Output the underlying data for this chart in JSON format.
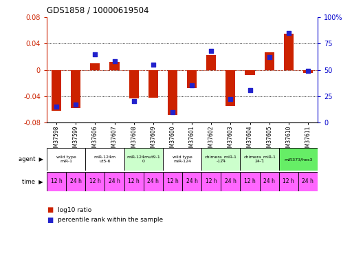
{
  "title": "GDS1858 / 10000619504",
  "samples": [
    "GSM37598",
    "GSM37599",
    "GSM37606",
    "GSM37607",
    "GSM37608",
    "GSM37609",
    "GSM37600",
    "GSM37601",
    "GSM37602",
    "GSM37603",
    "GSM37604",
    "GSM37605",
    "GSM37610",
    "GSM37611"
  ],
  "log10_ratio": [
    -0.062,
    -0.058,
    0.01,
    0.012,
    -0.043,
    -0.042,
    -0.068,
    -0.028,
    0.022,
    -0.055,
    -0.008,
    0.027,
    0.055,
    -0.005
  ],
  "percentile": [
    15,
    17,
    65,
    58,
    20,
    55,
    10,
    35,
    68,
    22,
    31,
    62,
    85,
    49
  ],
  "ylim": [
    -0.08,
    0.08
  ],
  "yticks_left": [
    -0.08,
    -0.04,
    0.0,
    0.04,
    0.08
  ],
  "yticks_right": [
    0,
    25,
    50,
    75,
    100
  ],
  "agent_groups": [
    {
      "label": "wild type\nmiR-1",
      "samples": [
        0,
        1
      ],
      "color": "#ffffff"
    },
    {
      "label": "miR-124m\nut5-6",
      "samples": [
        2,
        3
      ],
      "color": "#ffffff"
    },
    {
      "label": "miR-124mut9-1\n0",
      "samples": [
        4,
        5
      ],
      "color": "#ccffcc"
    },
    {
      "label": "wild type\nmiR-124",
      "samples": [
        6,
        7
      ],
      "color": "#ffffff"
    },
    {
      "label": "chimera_miR-1\n-124",
      "samples": [
        8,
        9
      ],
      "color": "#ccffcc"
    },
    {
      "label": "chimera_miR-1\n24-1",
      "samples": [
        10,
        11
      ],
      "color": "#ccffcc"
    },
    {
      "label": "miR373/hes3",
      "samples": [
        12,
        13
      ],
      "color": "#66ee66"
    }
  ],
  "time_labels": [
    "12 h",
    "24 h",
    "12 h",
    "24 h",
    "12 h",
    "24 h",
    "12 h",
    "24 h",
    "12 h",
    "24 h",
    "12 h",
    "24 h",
    "12 h",
    "24 h"
  ],
  "time_color": "#ff66ff",
  "bar_color": "#cc2200",
  "dot_color": "#2222cc",
  "background_color": "#ffffff",
  "left_axis_color": "#cc2200",
  "right_axis_color": "#0000cc",
  "legend": [
    {
      "color": "#cc2200",
      "label": "log10 ratio"
    },
    {
      "color": "#2222cc",
      "label": "percentile rank within the sample"
    }
  ]
}
